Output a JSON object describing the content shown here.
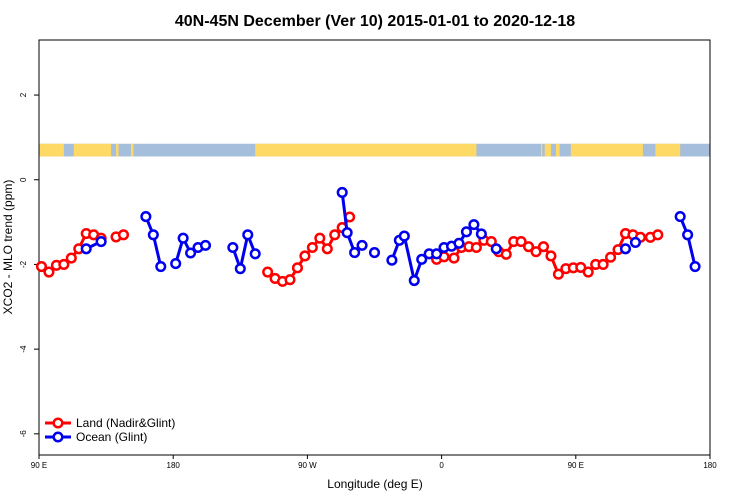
{
  "chart_data": {
    "type": "line",
    "title": "40N-45N December (Ver 10)   2015-01-01 to 2020-12-18",
    "xlabel": "Longitude (deg E)",
    "ylabel": "XCO2 - MLO trend (ppm)",
    "xlim": [
      -90,
      180
    ],
    "ylim": [
      -6.5,
      3.3
    ],
    "x_ticks": [
      {
        "value": -90,
        "label": "90 E"
      },
      {
        "value": -36,
        "label": "180"
      },
      {
        "value": 18,
        "label": "90 W"
      },
      {
        "value": 72,
        "label": "0"
      },
      {
        "value": 126,
        "label": "90 E"
      },
      {
        "value": 180,
        "label": "180"
      }
    ],
    "y_ticks": [
      {
        "value": 2,
        "label": "2"
      },
      {
        "value": 0,
        "label": "0"
      },
      {
        "value": -2,
        "label": "-2"
      },
      {
        "value": -4,
        "label": "-4"
      },
      {
        "value": -6,
        "label": "-6"
      }
    ],
    "land_ocean_band": {
      "y_range": [
        0.55,
        0.85
      ],
      "land_color": "#ffd966",
      "ocean_color": "#a4bedc",
      "land_segments": [
        [
          -90,
          -80
        ],
        [
          -76,
          -61
        ],
        [
          -59,
          -58
        ],
        [
          -53,
          -52
        ],
        [
          -3,
          86
        ],
        [
          112,
          112.5
        ],
        [
          113.5,
          116
        ],
        [
          118,
          119.5
        ],
        [
          124,
          153
        ],
        [
          158,
          168
        ]
      ]
    },
    "series": [
      {
        "name": "Land (Nadir&Glint)",
        "color": "#ff0000",
        "segments": [
          [
            [
              -89,
              -2.05
            ],
            [
              -86,
              -2.18
            ],
            [
              -83,
              -2.02
            ],
            [
              -80,
              -2.0
            ],
            [
              -77,
              -1.85
            ],
            [
              -74,
              -1.63
            ],
            [
              -71,
              -1.27
            ],
            [
              -68,
              -1.3
            ],
            [
              -65,
              -1.38
            ]
          ],
          [
            [
              -59,
              -1.35
            ],
            [
              -56,
              -1.3
            ]
          ],
          [
            [
              2,
              -2.18
            ],
            [
              5,
              -2.33
            ],
            [
              8,
              -2.4
            ],
            [
              11,
              -2.36
            ],
            [
              14,
              -2.08
            ],
            [
              17,
              -1.8
            ],
            [
              20,
              -1.6
            ],
            [
              23,
              -1.38
            ],
            [
              26,
              -1.63
            ],
            [
              29,
              -1.3
            ],
            [
              32,
              -1.13
            ],
            [
              35,
              -0.88
            ]
          ],
          [
            [
              70,
              -1.88
            ],
            [
              73,
              -1.82
            ],
            [
              77,
              -1.85
            ],
            [
              80,
              -1.6
            ],
            [
              83,
              -1.58
            ],
            [
              86,
              -1.6
            ],
            [
              89,
              -1.43
            ],
            [
              92,
              -1.46
            ],
            [
              95,
              -1.7
            ],
            [
              98,
              -1.76
            ],
            [
              101,
              -1.46
            ],
            [
              104,
              -1.46
            ],
            [
              107,
              -1.58
            ],
            [
              110,
              -1.7
            ],
            [
              113,
              -1.58
            ],
            [
              116,
              -1.8
            ],
            [
              119,
              -2.23
            ],
            [
              122,
              -2.1
            ],
            [
              125,
              -2.08
            ],
            [
              128,
              -2.07
            ],
            [
              131,
              -2.18
            ],
            [
              134,
              -2.0
            ],
            [
              137,
              -2.0
            ],
            [
              140,
              -1.83
            ],
            [
              143,
              -1.65
            ],
            [
              146,
              -1.27
            ],
            [
              149,
              -1.3
            ],
            [
              152,
              -1.36
            ]
          ],
          [
            [
              156,
              -1.36
            ],
            [
              159,
              -1.3
            ]
          ]
        ]
      },
      {
        "name": "Ocean (Glint)",
        "color": "#0000ee",
        "segments": [
          [
            [
              -71,
              -1.63
            ],
            [
              -65,
              -1.46
            ]
          ],
          [
            [
              -47,
              -0.87
            ],
            [
              -44,
              -1.3
            ],
            [
              -41,
              -2.05
            ]
          ],
          [
            [
              -35,
              -1.98
            ],
            [
              -32,
              -1.38
            ],
            [
              -29,
              -1.73
            ],
            [
              -26,
              -1.6
            ],
            [
              -23,
              -1.55
            ]
          ],
          [
            [
              -12,
              -1.6
            ],
            [
              -9,
              -2.1
            ],
            [
              -6,
              -1.3
            ],
            [
              -3,
              -1.75
            ]
          ],
          [
            [
              32,
              -0.3
            ],
            [
              34,
              -1.25
            ],
            [
              37,
              -1.72
            ],
            [
              40,
              -1.55
            ]
          ],
          [
            [
              45,
              -1.72
            ]
          ],
          [
            [
              52,
              -1.9
            ],
            [
              55,
              -1.43
            ],
            [
              57,
              -1.33
            ],
            [
              61,
              -2.38
            ],
            [
              64,
              -1.88
            ],
            [
              67,
              -1.75
            ],
            [
              70,
              -1.75
            ]
          ],
          [
            [
              73,
              -1.6
            ],
            [
              76,
              -1.57
            ],
            [
              79,
              -1.5
            ],
            [
              82,
              -1.23
            ],
            [
              85,
              -1.06
            ],
            [
              88,
              -1.28
            ]
          ],
          [
            [
              94,
              -1.63
            ]
          ],
          [
            [
              146,
              -1.63
            ]
          ],
          [
            [
              150,
              -1.48
            ]
          ],
          [
            [
              168,
              -0.87
            ],
            [
              171,
              -1.3
            ],
            [
              174,
              -2.05
            ]
          ]
        ]
      }
    ],
    "legend": "bottom-left"
  }
}
